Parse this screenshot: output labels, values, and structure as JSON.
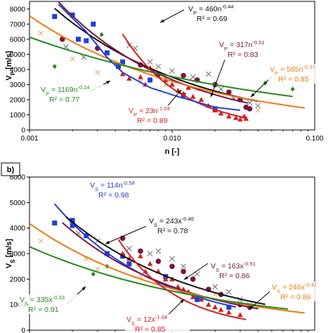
{
  "colors": {
    "black": "#111111",
    "blue": "#1f3fd8",
    "red": "#d81e1e",
    "purple": "#7a1440",
    "green": "#238a1c",
    "orange": "#ef7a12",
    "gray": "#6e6e6e",
    "tan": "#e8b080"
  },
  "chart_data": [
    {
      "type": "scatter",
      "panel_label": "",
      "xlabel": "n [-]",
      "ylabel_main": "V",
      "ylabel_sub": "P",
      "ylabel_rest": " [m/s]",
      "xscale": "log",
      "xlim": [
        0.001,
        0.1
      ],
      "ylim": [
        0,
        8500
      ],
      "x_ticks": [
        {
          "v": 0.001,
          "label": "0.001"
        },
        {
          "v": 0.01,
          "label": "0.010"
        },
        {
          "v": 0.1,
          "label": "0.100"
        }
      ],
      "y_ticks": [
        0,
        1000,
        2000,
        3000,
        4000,
        5000,
        6000,
        7000,
        8000
      ],
      "y_tick_labels": [
        "0",
        "1000",
        "2000",
        "3000",
        "4000",
        "5000",
        "6000",
        "7000",
        "8000"
      ],
      "fits": [
        {
          "color": "black",
          "a": 460,
          "b": 0.44,
          "range": [
            0.0015,
            0.04
          ]
        },
        {
          "color": "purple",
          "a": 317,
          "b": 0.51,
          "range": [
            0.0016,
            0.034
          ]
        },
        {
          "color": "orange",
          "a": 585,
          "b": 0.37,
          "range": [
            0.001,
            0.085
          ]
        },
        {
          "color": "green",
          "a": 1169,
          "b": 0.24,
          "range": [
            0.001,
            0.07
          ]
        },
        {
          "color": "red",
          "a": 23,
          "b": 1.04,
          "range": [
            0.0045,
            0.033
          ]
        },
        {
          "color": "blue",
          "a": 0,
          "b": 0,
          "custom": [
            [
              0.0016,
              8300
            ],
            [
              0.0025,
              6500
            ],
            [
              0.0035,
              4800
            ],
            [
              0.0045,
              3800
            ],
            [
              0.007,
              2800
            ],
            [
              0.011,
              2200
            ],
            [
              0.02,
              1500
            ],
            [
              0.03,
              1300
            ]
          ]
        }
      ],
      "equations": [
        {
          "color": "black",
          "prefix": "V",
          "sub": "P",
          "mid": " = 460n",
          "sup": "-0.44",
          "r2": "R² = 0.69"
        },
        {
          "color": "purple",
          "prefix": "V",
          "sub": "P",
          "mid": " = 317n",
          "sup": "-0.51",
          "r2": "R² = 0.83"
        },
        {
          "color": "orange",
          "prefix": "V",
          "sub": "P",
          "mid": " = 585n",
          "sup": "-0.37",
          "r2": "R² = 0.85"
        },
        {
          "color": "green",
          "prefix": "V",
          "sub": "P",
          "mid": " = 1169n",
          "sup": "-0.24",
          "r2": "R² = 0.77"
        },
        {
          "color": "red",
          "prefix": "V",
          "sub": "P",
          "mid": " = 23n",
          "sup": "-1.04",
          "r2": "R² = 0.89"
        }
      ],
      "points": {
        "blue_square": [
          [
            0.0015,
            7500
          ],
          [
            0.002,
            7600
          ],
          [
            0.0022,
            6000
          ],
          [
            0.0025,
            5900
          ],
          [
            0.0028,
            7000
          ],
          [
            0.0035,
            5100
          ],
          [
            0.0042,
            4200
          ],
          [
            0.0045,
            4500
          ],
          [
            0.007,
            3300
          ],
          [
            0.012,
            2300
          ],
          [
            0.02,
            1400
          ]
        ],
        "red_triangle": [
          [
            0.0045,
            3700
          ],
          [
            0.005,
            3400
          ],
          [
            0.006,
            3500
          ],
          [
            0.0065,
            3000
          ],
          [
            0.007,
            4100
          ],
          [
            0.008,
            3600
          ],
          [
            0.009,
            3300
          ],
          [
            0.01,
            3000
          ],
          [
            0.011,
            2600
          ],
          [
            0.012,
            2400
          ],
          [
            0.013,
            2800
          ],
          [
            0.014,
            2200
          ],
          [
            0.016,
            2000
          ],
          [
            0.018,
            1600
          ],
          [
            0.02,
            1300
          ],
          [
            0.022,
            1100
          ],
          [
            0.025,
            900
          ],
          [
            0.028,
            800
          ],
          [
            0.03,
            700
          ],
          [
            0.032,
            900
          ],
          [
            0.033,
            750
          ]
        ],
        "purple_circle": [
          [
            0.0017,
            6000
          ],
          [
            0.003,
            5400
          ],
          [
            0.006,
            4300
          ],
          [
            0.008,
            3700
          ],
          [
            0.012,
            3600
          ],
          [
            0.015,
            3300
          ],
          [
            0.02,
            3000
          ],
          [
            0.025,
            2500
          ],
          [
            0.03,
            2000
          ],
          [
            0.033,
            1500
          ],
          [
            0.035,
            1400
          ]
        ],
        "green_diamond": [
          [
            0.0015,
            4200
          ],
          [
            0.0032,
            6300
          ],
          [
            0.045,
            3100
          ],
          [
            0.07,
            2700
          ]
        ],
        "gray_x": [
          [
            0.0018,
            5500
          ],
          [
            0.0024,
            4800
          ],
          [
            0.005,
            5600
          ],
          [
            0.0055,
            5400
          ],
          [
            0.007,
            4500
          ],
          [
            0.008,
            4200
          ],
          [
            0.01,
            3900
          ],
          [
            0.014,
            3500
          ],
          [
            0.018,
            3700
          ],
          [
            0.022,
            2700
          ],
          [
            0.027,
            2100
          ],
          [
            0.035,
            1800
          ],
          [
            0.04,
            1600
          ]
        ],
        "tan_x": [
          [
            0.0012,
            6400
          ],
          [
            0.002,
            4700
          ],
          [
            0.003,
            3800
          ],
          [
            0.006,
            3200
          ],
          [
            0.009,
            3000
          ],
          [
            0.015,
            2700
          ],
          [
            0.04,
            1300
          ]
        ]
      }
    },
    {
      "type": "scatter",
      "panel_label": "b)",
      "xlabel": "",
      "ylabel_main": "V",
      "ylabel_sub": "S",
      "ylabel_rest": " [m/s]",
      "xscale": "log",
      "xlim": [
        0.001,
        0.1
      ],
      "ylim": [
        0,
        6000
      ],
      "x_ticks": [],
      "y_ticks": [
        0,
        1000,
        2000,
        3000,
        4000,
        5000,
        6000
      ],
      "y_tick_labels": [
        "0",
        "1000",
        "2000",
        "3000",
        "4000",
        "5000",
        "6000"
      ],
      "fits": [
        {
          "color": "blue",
          "a": 114,
          "b": 0.58,
          "range": [
            0.0015,
            0.028
          ]
        },
        {
          "color": "black",
          "a": 243,
          "b": 0.46,
          "range": [
            0.0018,
            0.045
          ]
        },
        {
          "color": "purple",
          "a": 163,
          "b": 0.51,
          "range": [
            0.0017,
            0.04
          ]
        },
        {
          "color": "orange",
          "a": 246,
          "b": 0.41,
          "range": [
            0.001,
            0.085
          ]
        },
        {
          "color": "green",
          "a": 335,
          "b": 0.33,
          "range": [
            0.001,
            0.065
          ]
        },
        {
          "color": "red",
          "a": 12,
          "b": 1.04,
          "range": [
            0.0042,
            0.033
          ]
        }
      ],
      "equations": [
        {
          "color": "blue",
          "prefix": "V",
          "sub": "S",
          "mid": " = 114n",
          "sup": "-0.58",
          "r2": "R² = 0.98"
        },
        {
          "color": "black",
          "prefix": "V",
          "sub": "S",
          "mid": " = 243x",
          "sup": "-0.46",
          "r2": "R² = 0.78"
        },
        {
          "color": "purple",
          "prefix": "V",
          "sub": "S",
          "mid": " = 163x",
          "sup": "-0.51",
          "r2": "R² = 0.86"
        },
        {
          "color": "orange",
          "prefix": "V",
          "sub": "S",
          "mid": " = 246x",
          "sup": "-0.41",
          "r2": "R² = 0.86"
        },
        {
          "color": "green",
          "prefix": "V",
          "sub": "S",
          "mid": " = 335x",
          "sup": "-0.33",
          "r2": "R² = 0.91"
        },
        {
          "color": "red",
          "prefix": "V",
          "sub": "S",
          "mid": " = 12x",
          "sup": "-1.04",
          "r2": "R² = 0.85"
        }
      ],
      "points": {
        "blue_square": [
          [
            0.0015,
            4200
          ],
          [
            0.002,
            4300
          ],
          [
            0.002,
            4100
          ],
          [
            0.0025,
            3700
          ],
          [
            0.0035,
            3000
          ],
          [
            0.0045,
            2900
          ],
          [
            0.005,
            2600
          ],
          [
            0.009,
            2100
          ],
          [
            0.015,
            1200
          ],
          [
            0.025,
            900
          ]
        ],
        "red_triangle": [
          [
            0.0045,
            3000
          ],
          [
            0.005,
            2800
          ],
          [
            0.006,
            2900
          ],
          [
            0.0065,
            2300
          ],
          [
            0.007,
            2600
          ],
          [
            0.008,
            2300
          ],
          [
            0.009,
            2000
          ],
          [
            0.01,
            2000
          ],
          [
            0.011,
            1700
          ],
          [
            0.012,
            1600
          ],
          [
            0.013,
            1500
          ],
          [
            0.014,
            1300
          ],
          [
            0.016,
            1200
          ],
          [
            0.018,
            1000
          ],
          [
            0.02,
            900
          ],
          [
            0.022,
            800
          ],
          [
            0.025,
            700
          ],
          [
            0.03,
            600
          ]
        ],
        "purple_circle": [
          [
            0.0045,
            3600
          ],
          [
            0.006,
            3100
          ],
          [
            0.008,
            2700
          ],
          [
            0.01,
            2500
          ],
          [
            0.012,
            2300
          ],
          [
            0.014,
            2000
          ],
          [
            0.018,
            1600
          ],
          [
            0.022,
            1400
          ],
          [
            0.03,
            1000
          ],
          [
            0.035,
            900
          ]
        ],
        "green_diamond": [
          [
            0.0028,
            2200
          ],
          [
            0.0035,
            2500
          ]
        ],
        "gray_x": [
          [
            0.0022,
            3800
          ],
          [
            0.003,
            3500
          ],
          [
            0.005,
            3200
          ],
          [
            0.007,
            3000
          ],
          [
            0.008,
            3100
          ],
          [
            0.01,
            2800
          ],
          [
            0.012,
            2500
          ],
          [
            0.015,
            2200
          ],
          [
            0.02,
            1700
          ],
          [
            0.025,
            1500
          ],
          [
            0.03,
            1200
          ],
          [
            0.035,
            1000
          ]
        ],
        "tan_x": [
          [
            0.0012,
            3500
          ],
          [
            0.0025,
            2800
          ],
          [
            0.003,
            2400
          ],
          [
            0.006,
            2100
          ],
          [
            0.01,
            2000
          ],
          [
            0.02,
            1400
          ],
          [
            0.04,
            900
          ]
        ]
      }
    }
  ]
}
